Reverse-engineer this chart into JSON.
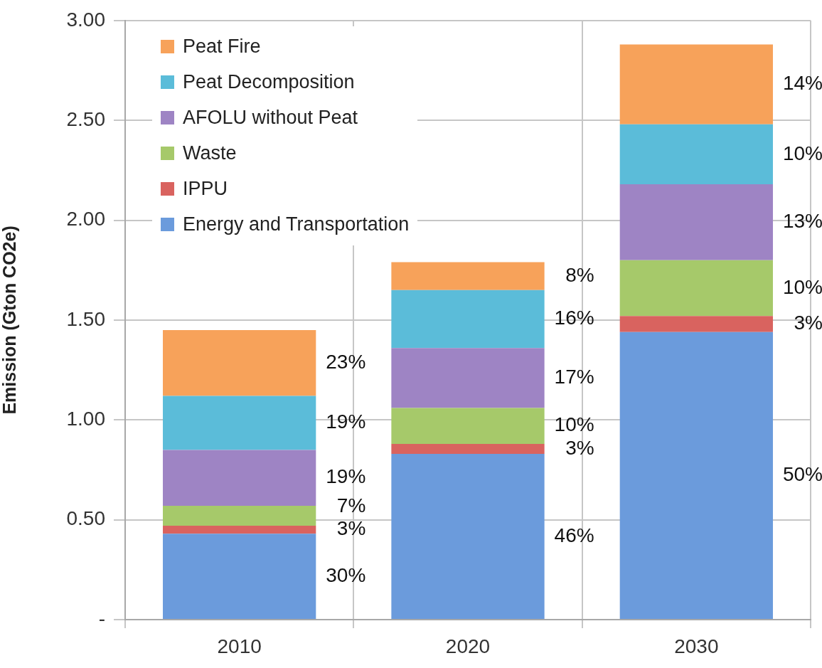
{
  "chart_data": {
    "type": "bar",
    "stacked": true,
    "categories": [
      "2010",
      "2020",
      "2030"
    ],
    "ylabel": "Emission (Gton CO2e)",
    "ylim": [
      0,
      3
    ],
    "yticks": [
      {
        "value": 0,
        "label": "-"
      },
      {
        "value": 0.5,
        "label": "0.50"
      },
      {
        "value": 1,
        "label": "1.00"
      },
      {
        "value": 1.5,
        "label": "1.50"
      },
      {
        "value": 2,
        "label": "2.00"
      },
      {
        "value": 2.5,
        "label": "2.50"
      },
      {
        "value": 3,
        "label": "3.00"
      }
    ],
    "grid": true,
    "legend": "top left",
    "series": [
      {
        "name": "Energy and Transportation",
        "color": "#6b9bdc",
        "values": [
          0.43,
          0.83,
          1.44
        ]
      },
      {
        "name": "IPPU",
        "color": "#d9635f",
        "values": [
          0.04,
          0.05,
          0.08
        ]
      },
      {
        "name": "Waste",
        "color": "#a6c96a",
        "values": [
          0.1,
          0.18,
          0.28
        ]
      },
      {
        "name": "AFOLU without Peat",
        "color": "#9e84c4",
        "values": [
          0.28,
          0.3,
          0.38
        ]
      },
      {
        "name": "Peat Decomposition",
        "color": "#5bbcd9",
        "values": [
          0.27,
          0.29,
          0.3
        ]
      },
      {
        "name": "Peat Fire",
        "color": "#f7a25a",
        "values": [
          0.33,
          0.14,
          0.4
        ]
      }
    ],
    "annotations": [
      "30%",
      "3%",
      "7%",
      "19%",
      "19%",
      "23%",
      "46%",
      "3%",
      "10%",
      "17%",
      "16%",
      "8%",
      "50%",
      "3%",
      "10%",
      "13%",
      "10%",
      "14%"
    ]
  }
}
